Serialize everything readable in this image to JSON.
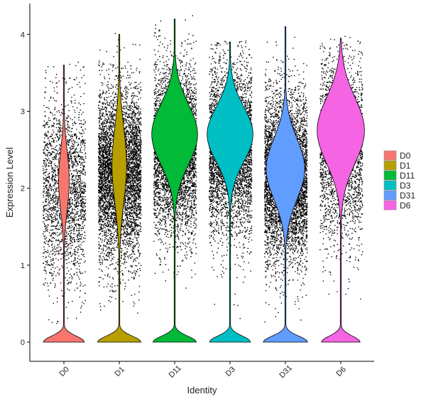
{
  "chart_data": {
    "type": "violin",
    "xlabel": "Identity",
    "ylabel": "Expression Level",
    "ylim": [
      -0.25,
      4.4
    ],
    "yticks": [
      0,
      1,
      2,
      3,
      4
    ],
    "grid": false,
    "legend_position": "right",
    "categories": [
      "D0",
      "D1",
      "D11",
      "D3",
      "D31",
      "D6"
    ],
    "series": [
      {
        "name": "D0",
        "color": "#F8766D",
        "max": 3.6,
        "zero_width": 0.85,
        "upper_width": 0.22,
        "upper_center": 2.1,
        "upper_spread": 0.55,
        "point_count": 2200,
        "point_center": 2.0,
        "point_spread": 0.6
      },
      {
        "name": "D1",
        "color": "#B79F00",
        "max": 4.0,
        "zero_width": 0.9,
        "upper_width": 0.3,
        "upper_center": 2.3,
        "upper_spread": 0.7,
        "point_count": 5200,
        "point_center": 2.2,
        "point_spread": 0.55
      },
      {
        "name": "D11",
        "color": "#00BA38",
        "max": 4.2,
        "zero_width": 0.9,
        "upper_width": 0.95,
        "upper_center": 2.7,
        "upper_spread": 0.55,
        "point_count": 4200,
        "point_center": 2.5,
        "point_spread": 0.55
      },
      {
        "name": "D3",
        "color": "#00BFC4",
        "max": 3.9,
        "zero_width": 0.85,
        "upper_width": 0.95,
        "upper_center": 2.7,
        "upper_spread": 0.5,
        "point_count": 4200,
        "point_center": 2.5,
        "point_spread": 0.55
      },
      {
        "name": "D31",
        "color": "#619CFF",
        "max": 4.1,
        "zero_width": 0.92,
        "upper_width": 0.8,
        "upper_center": 2.25,
        "upper_spread": 0.55,
        "point_count": 5200,
        "point_center": 2.15,
        "point_spread": 0.55
      },
      {
        "name": "D6",
        "color": "#F564E3",
        "max": 3.95,
        "zero_width": 0.8,
        "upper_width": 0.98,
        "upper_center": 2.75,
        "upper_spread": 0.6,
        "point_count": 2600,
        "point_center": 2.5,
        "point_spread": 0.6
      }
    ]
  }
}
